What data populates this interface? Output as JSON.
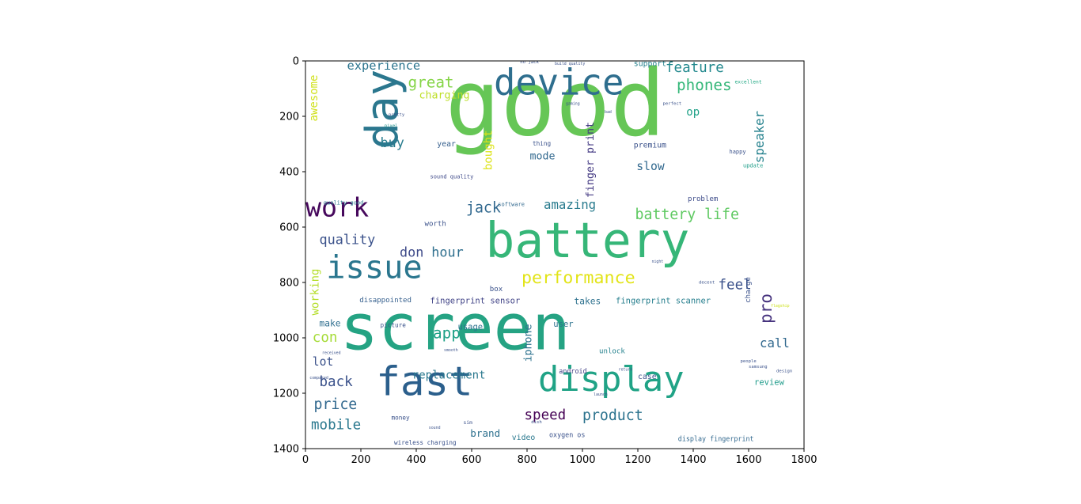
{
  "chart_data": {
    "type": "wordcloud",
    "title": "",
    "xlabel": "",
    "ylabel": "",
    "xlim": [
      0,
      1800
    ],
    "ylim": [
      1400,
      0
    ],
    "x_ticks": [
      0,
      200,
      400,
      600,
      800,
      1000,
      1200,
      1400,
      1600,
      1800
    ],
    "y_ticks": [
      0,
      200,
      400,
      600,
      800,
      1000,
      1200,
      1400
    ],
    "grid": false,
    "colormap": "viridis",
    "words": [
      {
        "text": "good",
        "x": 505,
        "y": 25,
        "size": 330,
        "color": "#66c656",
        "rotate": 0
      },
      {
        "text": "screen",
        "x": 125,
        "y": 870,
        "size": 230,
        "color": "#25a383",
        "rotate": 0
      },
      {
        "text": "battery",
        "x": 650,
        "y": 580,
        "size": 175,
        "color": "#36b678",
        "rotate": 0
      },
      {
        "text": "device",
        "x": 680,
        "y": 25,
        "size": 130,
        "color": "#2e6e8e",
        "rotate": 0
      },
      {
        "text": "day",
        "x": 215,
        "y": 30,
        "size": 160,
        "color": "#2b778e",
        "rotate": -90
      },
      {
        "text": "fast",
        "x": 255,
        "y": 1100,
        "size": 145,
        "color": "#2b5f8c",
        "rotate": 0
      },
      {
        "text": "display",
        "x": 840,
        "y": 1100,
        "size": 125,
        "color": "#20a386",
        "rotate": 0
      },
      {
        "text": "issue",
        "x": 75,
        "y": 700,
        "size": 115,
        "color": "#2a768e",
        "rotate": 0
      },
      {
        "text": "work",
        "x": 0,
        "y": 490,
        "size": 95,
        "color": "#46085c",
        "rotate": 0
      },
      {
        "text": "performance",
        "x": 780,
        "y": 760,
        "size": 62,
        "color": "#e2e418",
        "rotate": 0
      },
      {
        "text": "battery life",
        "x": 1190,
        "y": 535,
        "size": 52,
        "color": "#5ec961",
        "rotate": 0
      },
      {
        "text": "phones",
        "x": 1340,
        "y": 65,
        "size": 55,
        "color": "#35b779",
        "rotate": 0
      },
      {
        "text": "feature",
        "x": 1300,
        "y": 5,
        "size": 50,
        "color": "#23898e",
        "rotate": 0
      },
      {
        "text": "great",
        "x": 370,
        "y": 55,
        "size": 55,
        "color": "#86d549",
        "rotate": 0
      },
      {
        "text": "product",
        "x": 1000,
        "y": 1260,
        "size": 52,
        "color": "#2c738e",
        "rotate": 0
      },
      {
        "text": "speed",
        "x": 790,
        "y": 1260,
        "size": 50,
        "color": "#440154",
        "rotate": 0
      },
      {
        "text": "jack",
        "x": 580,
        "y": 510,
        "size": 52,
        "color": "#31688e",
        "rotate": 0
      },
      {
        "text": "amazing",
        "x": 860,
        "y": 500,
        "size": 45,
        "color": "#297b8e",
        "rotate": 0
      },
      {
        "text": "pro",
        "x": 1640,
        "y": 840,
        "size": 60,
        "color": "#46337e",
        "rotate": -90
      },
      {
        "text": "speaker",
        "x": 1620,
        "y": 180,
        "size": 45,
        "color": "#26828e",
        "rotate": -90
      },
      {
        "text": "app",
        "x": 460,
        "y": 960,
        "size": 55,
        "color": "#1fa187",
        "rotate": 0
      },
      {
        "text": "price",
        "x": 30,
        "y": 1220,
        "size": 52,
        "color": "#31688e",
        "rotate": 0
      },
      {
        "text": "mobile",
        "x": 20,
        "y": 1295,
        "size": 50,
        "color": "#2a788e",
        "rotate": 0
      },
      {
        "text": "quality",
        "x": 50,
        "y": 625,
        "size": 48,
        "color": "#3b528b",
        "rotate": 0
      },
      {
        "text": "don",
        "x": 340,
        "y": 670,
        "size": 48,
        "color": "#3e4a89",
        "rotate": 0
      },
      {
        "text": "hour",
        "x": 455,
        "y": 670,
        "size": 48,
        "color": "#2e6f8e",
        "rotate": 0
      },
      {
        "text": "con",
        "x": 25,
        "y": 980,
        "size": 50,
        "color": "#a5db36",
        "rotate": 0
      },
      {
        "text": "back",
        "x": 50,
        "y": 1140,
        "size": 50,
        "color": "#3b528b",
        "rotate": 0
      },
      {
        "text": "lot",
        "x": 25,
        "y": 1070,
        "size": 42,
        "color": "#3b528b",
        "rotate": 0
      },
      {
        "text": "call",
        "x": 1640,
        "y": 1000,
        "size": 45,
        "color": "#31688e",
        "rotate": 0
      },
      {
        "text": "feel",
        "x": 1490,
        "y": 790,
        "size": 50,
        "color": "#3b528b",
        "rotate": 0
      },
      {
        "text": "buy",
        "x": 270,
        "y": 275,
        "size": 48,
        "color": "#287c8e",
        "rotate": 0
      },
      {
        "text": "slow",
        "x": 1195,
        "y": 365,
        "size": 42,
        "color": "#31688e",
        "rotate": 0
      },
      {
        "text": "mode",
        "x": 810,
        "y": 330,
        "size": 38,
        "color": "#31688e",
        "rotate": 0
      },
      {
        "text": "op",
        "x": 1375,
        "y": 170,
        "size": 40,
        "color": "#1fa187",
        "rotate": 0
      },
      {
        "text": "experience",
        "x": 150,
        "y": 0,
        "size": 44,
        "color": "#2b748e",
        "rotate": 0
      },
      {
        "text": "charging",
        "x": 410,
        "y": 110,
        "size": 38,
        "color": "#bddf26",
        "rotate": 0
      },
      {
        "text": "replacement",
        "x": 385,
        "y": 1120,
        "size": 40,
        "color": "#2a788e",
        "rotate": 0
      },
      {
        "text": "awesome",
        "x": 15,
        "y": 50,
        "size": 40,
        "color": "#d0e11c",
        "rotate": -90
      },
      {
        "text": "working",
        "x": 20,
        "y": 750,
        "size": 40,
        "color": "#b5de2b",
        "rotate": -90
      },
      {
        "text": "bought",
        "x": 645,
        "y": 250,
        "size": 40,
        "color": "#dde318",
        "rotate": -90
      },
      {
        "text": "finger print",
        "x": 1015,
        "y": 220,
        "size": 38,
        "color": "#443a83",
        "rotate": -90
      },
      {
        "text": "iphone",
        "x": 790,
        "y": 950,
        "size": 38,
        "color": "#2c728e",
        "rotate": -90
      },
      {
        "text": "brand",
        "x": 595,
        "y": 1330,
        "size": 36,
        "color": "#2d708e",
        "rotate": 0
      },
      {
        "text": "make",
        "x": 50,
        "y": 935,
        "size": 32,
        "color": "#2e6e8e",
        "rotate": 0
      },
      {
        "text": "fingerprint scanner",
        "x": 1120,
        "y": 855,
        "size": 30,
        "color": "#277f8e",
        "rotate": 0
      },
      {
        "text": "fingerprint sensor",
        "x": 450,
        "y": 855,
        "size": 30,
        "color": "#414487",
        "rotate": 0
      },
      {
        "text": "disappointed",
        "x": 195,
        "y": 855,
        "size": 26,
        "color": "#355f8d",
        "rotate": 0
      },
      {
        "text": "takes",
        "x": 970,
        "y": 855,
        "size": 32,
        "color": "#2d718e",
        "rotate": 0
      },
      {
        "text": "premium",
        "x": 1185,
        "y": 295,
        "size": 28,
        "color": "#3b528b",
        "rotate": 0
      },
      {
        "text": "support",
        "x": 1185,
        "y": 0,
        "size": 28,
        "color": "#26828e",
        "rotate": 0
      },
      {
        "text": "problem",
        "x": 1380,
        "y": 490,
        "size": 26,
        "color": "#3e4c8a",
        "rotate": 0
      },
      {
        "text": "unlock",
        "x": 1060,
        "y": 1040,
        "size": 26,
        "color": "#26828e",
        "rotate": 0
      },
      {
        "text": "usage",
        "x": 550,
        "y": 950,
        "size": 30,
        "color": "#2c728e",
        "rotate": 0
      },
      {
        "text": "user",
        "x": 895,
        "y": 940,
        "size": 30,
        "color": "#2c738e",
        "rotate": 0
      },
      {
        "text": "review",
        "x": 1620,
        "y": 1150,
        "size": 30,
        "color": "#1e9b8a",
        "rotate": 0
      },
      {
        "text": "case",
        "x": 1200,
        "y": 1130,
        "size": 28,
        "color": "#3b528b",
        "rotate": 0
      },
      {
        "text": "charge",
        "x": 1590,
        "y": 780,
        "size": 26,
        "color": "#3b528b",
        "rotate": -90
      },
      {
        "text": "year",
        "x": 475,
        "y": 290,
        "size": 28,
        "color": "#355f8d",
        "rotate": 0
      },
      {
        "text": "worth",
        "x": 430,
        "y": 580,
        "size": 26,
        "color": "#3b528b",
        "rotate": 0
      },
      {
        "text": "android",
        "x": 915,
        "y": 1110,
        "size": 24,
        "color": "#424086",
        "rotate": 0
      },
      {
        "text": "box",
        "x": 665,
        "y": 815,
        "size": 26,
        "color": "#3b528b",
        "rotate": 0
      },
      {
        "text": "video",
        "x": 745,
        "y": 1350,
        "size": 28,
        "color": "#2a788e",
        "rotate": 0
      },
      {
        "text": "display fingerprint",
        "x": 1345,
        "y": 1355,
        "size": 24,
        "color": "#31688e",
        "rotate": 0
      },
      {
        "text": "oxygen os",
        "x": 880,
        "y": 1340,
        "size": 24,
        "color": "#3b528b",
        "rotate": 0
      },
      {
        "text": "picture",
        "x": 270,
        "y": 945,
        "size": 22,
        "color": "#3b528b",
        "rotate": 0
      },
      {
        "text": "money",
        "x": 310,
        "y": 1280,
        "size": 22,
        "color": "#3b528b",
        "rotate": 0
      },
      {
        "text": "wireless charging",
        "x": 320,
        "y": 1370,
        "size": 22,
        "color": "#3b528b",
        "rotate": 0
      },
      {
        "text": "sound quality",
        "x": 450,
        "y": 410,
        "size": 20,
        "color": "#3e4989",
        "rotate": 0
      },
      {
        "text": "quality good",
        "x": 65,
        "y": 505,
        "size": 20,
        "color": "#2a788e",
        "rotate": 0
      },
      {
        "text": "software",
        "x": 695,
        "y": 510,
        "size": 20,
        "color": "#31688e",
        "rotate": 0
      },
      {
        "text": "thing",
        "x": 820,
        "y": 290,
        "size": 22,
        "color": "#3b528b",
        "rotate": 0
      },
      {
        "text": "happy",
        "x": 1530,
        "y": 320,
        "size": 20,
        "color": "#3b528b",
        "rotate": 0
      },
      {
        "text": "update",
        "x": 1580,
        "y": 370,
        "size": 20,
        "color": "#1f9e89",
        "rotate": 0
      },
      {
        "text": "excellent",
        "x": 1550,
        "y": 70,
        "size": 18,
        "color": "#22a884",
        "rotate": 0
      },
      {
        "text": "perfect",
        "x": 1290,
        "y": 150,
        "size": 16,
        "color": "#3b528b",
        "rotate": 0
      },
      {
        "text": "pretty",
        "x": 300,
        "y": 190,
        "size": 16,
        "color": "#3b528b",
        "rotate": 0
      },
      {
        "text": "pixel",
        "x": 285,
        "y": 230,
        "size": 16,
        "color": "#21918c",
        "rotate": 0
      },
      {
        "text": "samsung",
        "x": 1600,
        "y": 1100,
        "size": 16,
        "color": "#3b528b",
        "rotate": 0
      },
      {
        "text": "people",
        "x": 1570,
        "y": 1080,
        "size": 16,
        "color": "#3b528b",
        "rotate": 0
      },
      {
        "text": "design",
        "x": 1700,
        "y": 1115,
        "size": 16,
        "color": "#3b528b",
        "rotate": 0
      },
      {
        "text": "decent",
        "x": 1420,
        "y": 795,
        "size": 16,
        "color": "#3b528b",
        "rotate": 0
      },
      {
        "text": "flagship",
        "x": 1680,
        "y": 880,
        "size": 14,
        "color": "#cde11d",
        "rotate": 0
      },
      {
        "text": "build quality",
        "x": 900,
        "y": 5,
        "size": 14,
        "color": "#3b528b",
        "rotate": 0
      },
      {
        "text": "no jack",
        "x": 775,
        "y": 0,
        "size": 16,
        "color": "#3b528b",
        "rotate": 0
      },
      {
        "text": "gaming",
        "x": 940,
        "y": 150,
        "size": 14,
        "color": "#3b528b",
        "rotate": 0
      },
      {
        "text": "received",
        "x": 60,
        "y": 1050,
        "size": 14,
        "color": "#3b528b",
        "rotate": 0
      },
      {
        "text": "compared",
        "x": 15,
        "y": 1140,
        "size": 14,
        "color": "#3b528b",
        "rotate": 0
      },
      {
        "text": "return",
        "x": 1130,
        "y": 1110,
        "size": 14,
        "color": "#3b528b",
        "rotate": 0
      },
      {
        "text": "sim",
        "x": 570,
        "y": 1300,
        "size": 18,
        "color": "#3b528b",
        "rotate": 0
      },
      {
        "text": "dish",
        "x": 815,
        "y": 1300,
        "size": 16,
        "color": "#3b528b",
        "rotate": 0
      },
      {
        "text": "smooth",
        "x": 500,
        "y": 1040,
        "size": 14,
        "color": "#3b528b",
        "rotate": 0
      },
      {
        "text": "launch",
        "x": 1040,
        "y": 1200,
        "size": 14,
        "color": "#3b528b",
        "rotate": 0
      },
      {
        "text": "sound",
        "x": 445,
        "y": 1320,
        "size": 14,
        "color": "#3b528b",
        "rotate": 0
      },
      {
        "text": "night",
        "x": 1250,
        "y": 720,
        "size": 14,
        "color": "#3b528b",
        "rotate": 0
      },
      {
        "text": "bad",
        "x": 1080,
        "y": 180,
        "size": 14,
        "color": "#3b528b",
        "rotate": 0
      }
    ]
  }
}
